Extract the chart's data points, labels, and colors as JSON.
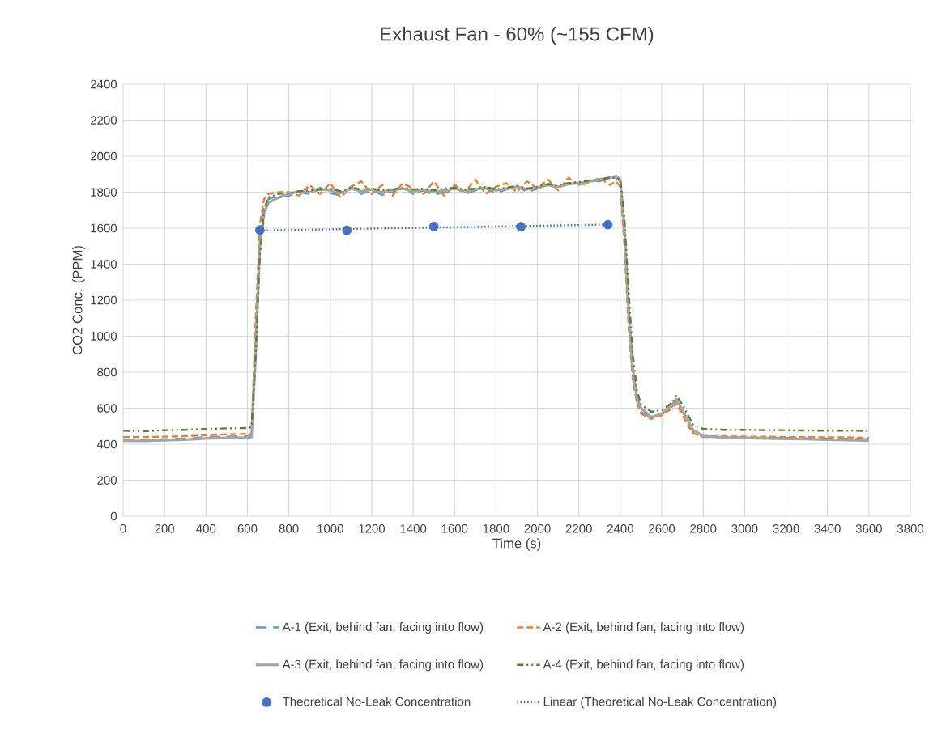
{
  "chart_data": {
    "type": "line",
    "title": "Exhaust Fan - 60% (~155 CFM)",
    "xlabel": "Time (s)",
    "ylabel": "CO2 Conc. (PPM)",
    "x": [
      0,
      100,
      200,
      300,
      400,
      500,
      600,
      620,
      640,
      660,
      680,
      700,
      750,
      800,
      850,
      900,
      950,
      1000,
      1050,
      1100,
      1150,
      1200,
      1250,
      1300,
      1350,
      1400,
      1450,
      1500,
      1550,
      1600,
      1650,
      1700,
      1750,
      1800,
      1850,
      1900,
      1950,
      2000,
      2050,
      2100,
      2150,
      2200,
      2250,
      2300,
      2350,
      2380,
      2400,
      2420,
      2440,
      2460,
      2480,
      2500,
      2550,
      2600,
      2650,
      2670,
      2700,
      2750,
      2800,
      2900,
      3000,
      3100,
      3200,
      3300,
      3400,
      3500,
      3600
    ],
    "series": [
      {
        "name": "A-1 (Exit, behind fan, facing into flow)",
        "color": "#5b9bd5",
        "line_style": "longdashed",
        "values": [
          425,
          423,
          428,
          430,
          440,
          442,
          445,
          450,
          1000,
          1560,
          1720,
          1760,
          1780,
          1780,
          1800,
          1790,
          1825,
          1795,
          1780,
          1830,
          1790,
          1810,
          1785,
          1800,
          1835,
          1790,
          1810,
          1785,
          1800,
          1830,
          1790,
          1810,
          1820,
          1795,
          1815,
          1835,
          1800,
          1820,
          1845,
          1820,
          1850,
          1840,
          1865,
          1860,
          1885,
          1880,
          1860,
          1550,
          1100,
          780,
          640,
          580,
          545,
          565,
          610,
          640,
          580,
          470,
          440,
          440,
          438,
          436,
          435,
          433,
          432,
          430,
          428
        ]
      },
      {
        "name": "A-2 (Exit, behind fan, facing into flow)",
        "color": "#ed7d31",
        "line_style": "dashed",
        "values": [
          440,
          440,
          442,
          445,
          450,
          455,
          458,
          460,
          1100,
          1620,
          1760,
          1790,
          1800,
          1800,
          1780,
          1840,
          1790,
          1850,
          1770,
          1830,
          1860,
          1790,
          1840,
          1780,
          1850,
          1820,
          1790,
          1860,
          1780,
          1840,
          1800,
          1870,
          1790,
          1830,
          1850,
          1800,
          1860,
          1820,
          1870,
          1810,
          1880,
          1840,
          1850,
          1880,
          1840,
          1860,
          1830,
          1500,
          1050,
          760,
          630,
          570,
          540,
          560,
          600,
          630,
          560,
          460,
          445,
          445,
          442,
          442,
          440,
          440,
          438,
          438,
          436
        ]
      },
      {
        "name": "A-3 (Exit, behind fan, facing into flow)",
        "color": "#a5a5a5",
        "line_style": "solid",
        "values": [
          420,
          418,
          422,
          425,
          432,
          435,
          438,
          440,
          900,
          1500,
          1680,
          1740,
          1770,
          1790,
          1805,
          1800,
          1815,
          1810,
          1795,
          1820,
          1805,
          1815,
          1800,
          1810,
          1820,
          1805,
          1815,
          1800,
          1810,
          1820,
          1805,
          1815,
          1825,
          1810,
          1820,
          1830,
          1815,
          1825,
          1840,
          1830,
          1845,
          1850,
          1860,
          1870,
          1880,
          1890,
          1870,
          1600,
          1150,
          820,
          660,
          600,
          550,
          570,
          620,
          650,
          590,
          480,
          445,
          438,
          435,
          432,
          430,
          428,
          425,
          423,
          420
        ]
      },
      {
        "name": "A-4 (Exit, behind fan, facing into flow)",
        "color": "#548235",
        "line_style": "dashdotdotted",
        "values": [
          475,
          472,
          478,
          480,
          485,
          488,
          490,
          495,
          900,
          1450,
          1700,
          1770,
          1790,
          1795,
          1805,
          1810,
          1815,
          1820,
          1805,
          1825,
          1815,
          1820,
          1810,
          1815,
          1825,
          1815,
          1820,
          1810,
          1820,
          1825,
          1815,
          1820,
          1830,
          1815,
          1825,
          1835,
          1820,
          1830,
          1845,
          1840,
          1850,
          1855,
          1865,
          1870,
          1880,
          1880,
          1870,
          1650,
          1250,
          900,
          700,
          620,
          580,
          590,
          630,
          670,
          620,
          510,
          485,
          480,
          480,
          478,
          478,
          476,
          475,
          475,
          474
        ]
      },
      {
        "name": "Theoretical No-Leak Concentration",
        "type": "scatter",
        "color": "#4472c4",
        "marker": "circle",
        "x": [
          660,
          1080,
          1500,
          1920,
          2340
        ],
        "values": [
          1590,
          1588,
          1610,
          1608,
          1620
        ]
      },
      {
        "name": "Linear (Theoretical No-Leak Concentration)",
        "type": "line",
        "color": "#4472c4",
        "line_style": "dotted",
        "x": [
          660,
          2340
        ],
        "values": [
          1587,
          1620
        ]
      }
    ],
    "xlim": [
      0,
      3800
    ],
    "ylim": [
      0,
      2400
    ],
    "xticks": [
      0,
      200,
      400,
      600,
      800,
      1000,
      1200,
      1400,
      1600,
      1800,
      2000,
      2200,
      2400,
      2600,
      2800,
      3000,
      3200,
      3400,
      3600,
      3800
    ],
    "yticks": [
      0,
      200,
      400,
      600,
      800,
      1000,
      1200,
      1400,
      1600,
      1800,
      2000,
      2200,
      2400
    ],
    "grid": true,
    "legend": "bottom"
  }
}
